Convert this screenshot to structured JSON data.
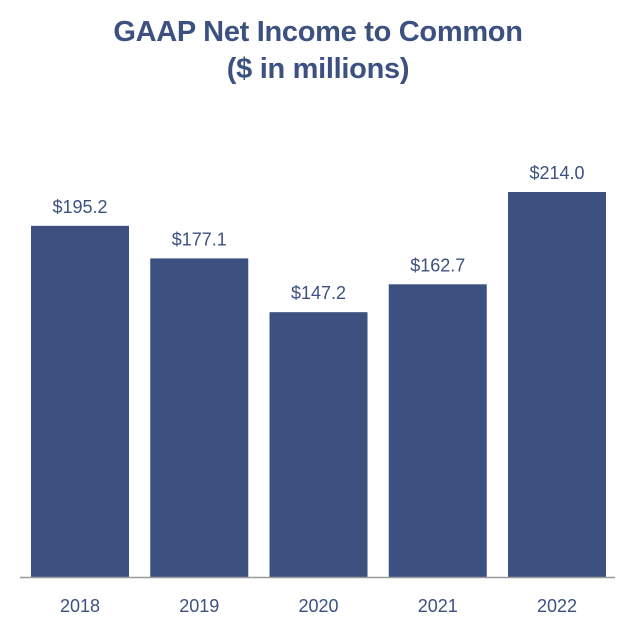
{
  "chart_data": {
    "type": "bar",
    "title": "GAAP Net Income to Common",
    "subtitle": "($ in millions)",
    "categories": [
      "2018",
      "2019",
      "2020",
      "2021",
      "2022"
    ],
    "values": [
      195.2,
      177.1,
      147.2,
      162.7,
      214.0
    ],
    "value_labels": [
      "$195.2",
      "$177.1",
      "$147.2",
      "$162.7",
      "$214.0"
    ],
    "ylim": [
      0,
      214.0
    ],
    "grid": false,
    "legend": "none",
    "bar_color": "#3d5180",
    "axis_color": "#9a9a9a"
  }
}
